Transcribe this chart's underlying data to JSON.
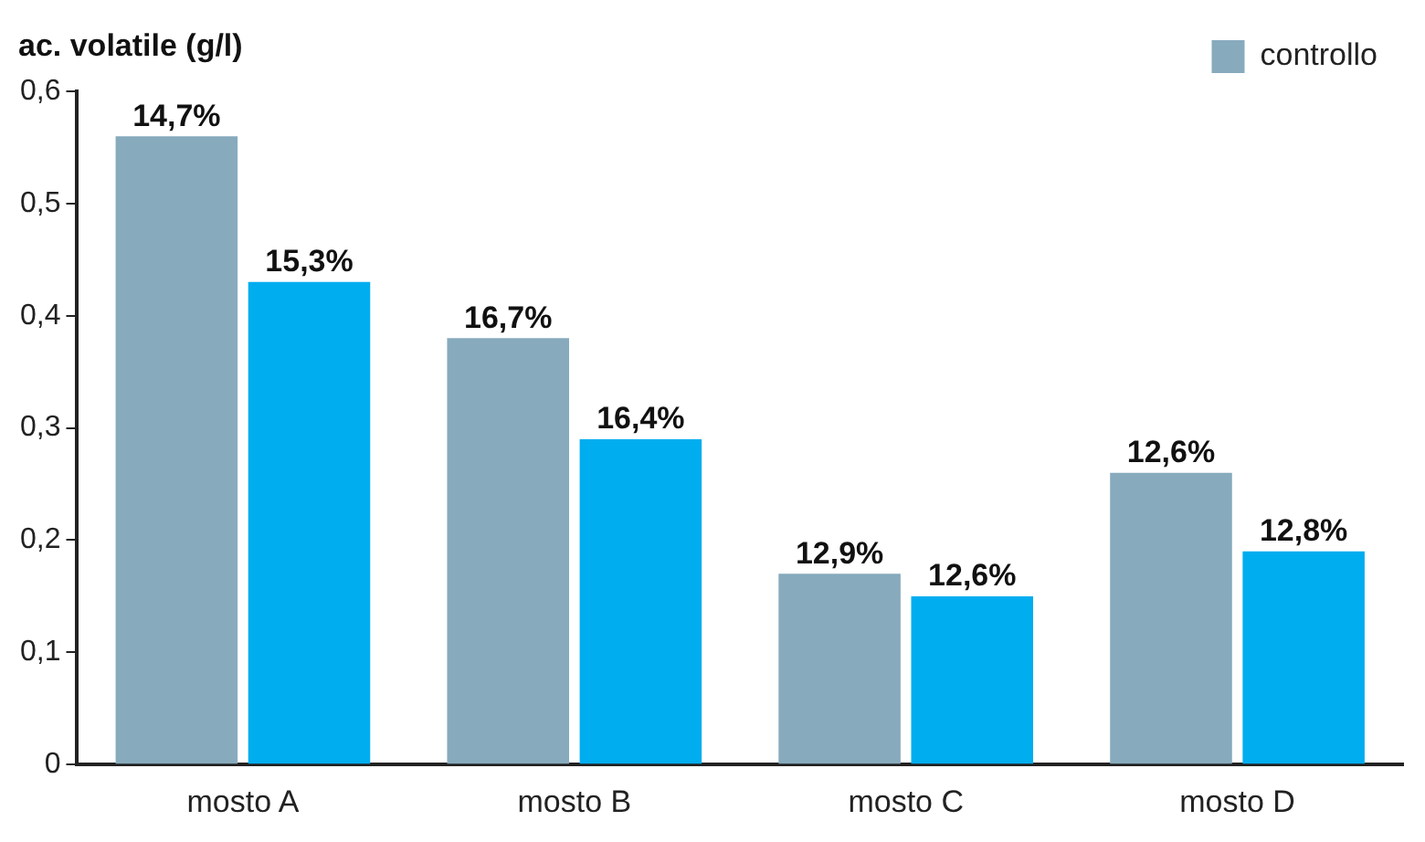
{
  "chart_data": {
    "type": "bar",
    "ylabel": "ac. volatile (g/l)",
    "categories": [
      "mosto A",
      "mosto B",
      "mosto C",
      "mosto D"
    ],
    "series": [
      {
        "name": "controllo",
        "color": "#87aabd",
        "values": [
          0.56,
          0.38,
          0.17,
          0.26
        ]
      },
      {
        "color": "#00adef",
        "values": [
          0.43,
          0.29,
          0.15,
          0.19
        ]
      }
    ],
    "annotations": [
      {
        "text": "14,7%",
        "x": "mosto A",
        "y": 0.56
      },
      {
        "text": "15,3%",
        "x": "mosto A",
        "y": 0.43
      },
      {
        "text": "16,7%",
        "x": "mosto B",
        "y": 0.38
      },
      {
        "text": "16,4%",
        "x": "mosto B",
        "y": 0.29
      },
      {
        "text": "12,9%",
        "x": "mosto C",
        "y": 0.17
      },
      {
        "text": "12,6%",
        "x": "mosto C",
        "y": 0.15
      },
      {
        "text": "12,6%",
        "x": "mosto D",
        "y": 0.26
      },
      {
        "text": "12,8%",
        "x": "mosto D",
        "y": 0.19
      }
    ],
    "ylim": [
      0,
      0.6
    ],
    "yticks": [
      0,
      {
        "value": 0.1,
        "label": "0,1"
      },
      {
        "value": 0.2,
        "label": "0,2"
      },
      {
        "value": 0.3,
        "label": "0,3"
      },
      {
        "value": 0.4,
        "label": "0,4"
      },
      {
        "value": 0.5,
        "label": "0,5"
      },
      {
        "value": 0.6,
        "label": "0,6"
      }
    ],
    "grid": false,
    "legend": "top right"
  }
}
